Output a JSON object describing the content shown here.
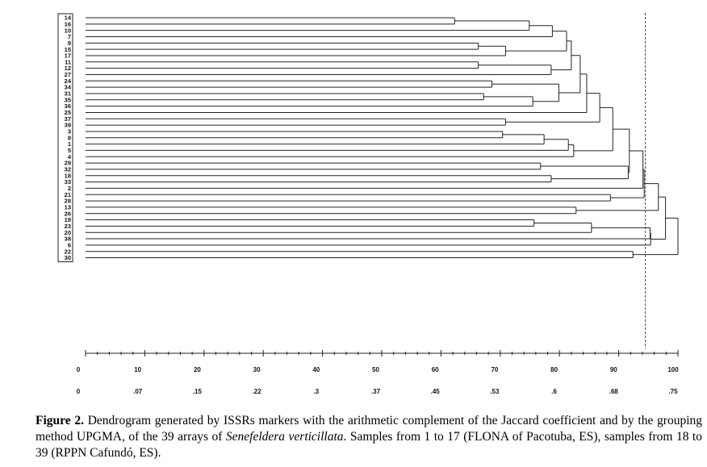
{
  "caption": {
    "label": "Figure 2.",
    "text_before": "Dendrogram generated by ISSRs markers with the arithmetic complement of the Jaccard coefficient and by the grouping method UPGMA, of the 39 arrays of",
    "species": "Senefeldera verticillata",
    "text_after": ". Samples from 1 to 17 (FLONA of Pacotuba, ES), samples from 18 to 39 (RPPN Cafundó, ES)."
  },
  "colors": {
    "line": "#222222",
    "cutoff": "#444444"
  },
  "chart_data": {
    "type": "dendrogram",
    "leaves": [
      "14",
      "16",
      "10",
      "7",
      "9",
      "15",
      "17",
      "11",
      "12",
      "27",
      "24",
      "34",
      "31",
      "35",
      "36",
      "25",
      "37",
      "39",
      "3",
      "8",
      "1",
      "5",
      "4",
      "29",
      "32",
      "18",
      "33",
      "2",
      "21",
      "28",
      "13",
      "26",
      "19",
      "23",
      "20",
      "38",
      "6",
      "22",
      "30"
    ],
    "axis_top": {
      "min": 0,
      "max": 100,
      "ticks": [
        "0",
        "10",
        "20",
        "30",
        "40",
        "50",
        "60",
        "70",
        "80",
        "90",
        "100"
      ]
    },
    "axis_bottom": {
      "ticks": [
        "0",
        ".07",
        ".15",
        ".22",
        ".3",
        ".37",
        ".45",
        ".53",
        ".6",
        ".68",
        ".75"
      ]
    },
    "cutoff": 94.5,
    "merges": [
      {
        "a": "14",
        "b": "16",
        "h": 62.3
      },
      {
        "a": "m0",
        "b": "10",
        "h": 74.9
      },
      {
        "a": "m1",
        "b": "7",
        "h": 78.8
      },
      {
        "a": "9",
        "b": "15",
        "h": 66.3
      },
      {
        "a": "m3",
        "b": "17",
        "h": 70.9
      },
      {
        "a": "m2",
        "b": "m4",
        "h": 81.2
      },
      {
        "a": "11",
        "b": "12",
        "h": 66.3
      },
      {
        "a": "m6",
        "b": "27",
        "h": 78.6
      },
      {
        "a": "m5",
        "b": "m7",
        "h": 82.0
      },
      {
        "a": "24",
        "b": "34",
        "h": 68.6
      },
      {
        "a": "31",
        "b": "35",
        "h": 67.2
      },
      {
        "a": "m10",
        "b": "36",
        "h": 75.5
      },
      {
        "a": "m9",
        "b": "m11",
        "h": 79.9
      },
      {
        "a": "m8",
        "b": "m12",
        "h": 83.5
      },
      {
        "a": "m13",
        "b": "25",
        "h": 84.6
      },
      {
        "a": "37",
        "b": "39",
        "h": 70.9
      },
      {
        "a": "m14",
        "b": "m15",
        "h": 86.8
      },
      {
        "a": "3",
        "b": "8",
        "h": 70.4
      },
      {
        "a": "m17",
        "b": "1",
        "h": 77.4
      },
      {
        "a": "m18",
        "b": "5",
        "h": 81.5
      },
      {
        "a": "m19",
        "b": "4",
        "h": 82.4
      },
      {
        "a": "m16",
        "b": "m20",
        "h": 89.0
      },
      {
        "a": "29",
        "b": "32",
        "h": 76.8
      },
      {
        "a": "18",
        "b": "33",
        "h": 78.6
      },
      {
        "a": "m22",
        "b": "m23",
        "h": 91.6
      },
      {
        "a": "m21",
        "b": "m24",
        "h": 91.8
      },
      {
        "a": "m25",
        "b": "2",
        "h": 94.1
      },
      {
        "a": "21",
        "b": "28",
        "h": 88.6
      },
      {
        "a": "m26",
        "b": "m27",
        "h": 94.3
      },
      {
        "a": "13",
        "b": "26",
        "h": 82.8
      },
      {
        "a": "m28",
        "b": "m29",
        "h": 96.7
      },
      {
        "a": "19",
        "b": "23",
        "h": 75.7
      },
      {
        "a": "m31",
        "b": "20",
        "h": 85.4
      },
      {
        "a": "m32",
        "b": "38",
        "h": 95.3
      },
      {
        "a": "m33",
        "b": "6",
        "h": 95.4
      },
      {
        "a": "m30",
        "b": "m34",
        "h": 97.9
      },
      {
        "a": "22",
        "b": "30",
        "h": 92.4
      },
      {
        "a": "m35",
        "b": "m36",
        "h": 100.0
      }
    ]
  }
}
